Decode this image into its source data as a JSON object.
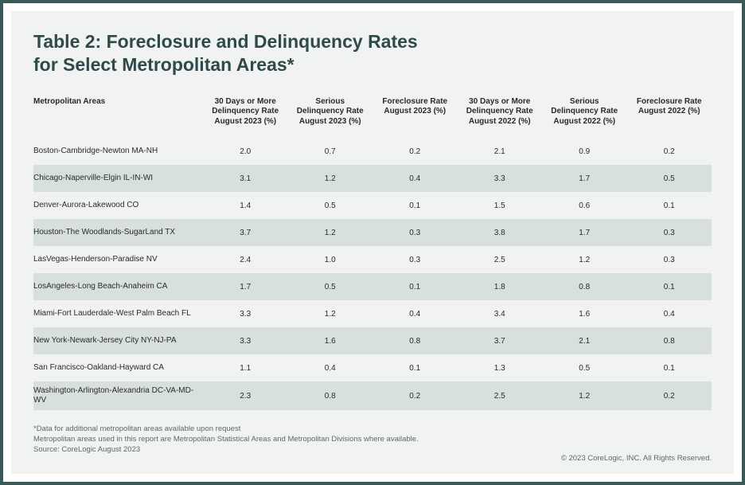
{
  "title_line1": "Table 2: Foreclosure and Delinquency Rates",
  "title_line2": "for Select Metropolitan Areas*",
  "colors": {
    "frame_border": "#3a5a5a",
    "card_bg": "#f1f3f2",
    "row_alt_bg": "#d8e0dd",
    "title_color": "#2f4a4a",
    "text_color": "#2a2a2a",
    "foot_color": "#5a6a6a"
  },
  "table": {
    "type": "table",
    "columns": [
      "Metropolitan Areas",
      "30 Days or More Delinquency Rate August 2023 (%)",
      "Serious Delinquency Rate August 2023 (%)",
      "Foreclosure Rate August 2023 (%)",
      "30 Days or More Delinquency Rate August 2022 (%)",
      "Serious Delinquency Rate August 2022 (%)",
      "Foreclosure Rate August 2022 (%)"
    ],
    "col_widths_pct": [
      25,
      12.5,
      12.5,
      12.5,
      12.5,
      12.5,
      12.5
    ],
    "header_fontsize_pt": 10,
    "cell_fontsize_pt": 10,
    "rows": [
      [
        "Boston-Cambridge-Newton MA-NH",
        "2.0",
        "0.7",
        "0.2",
        "2.1",
        "0.9",
        "0.2"
      ],
      [
        "Chicago-Naperville-Elgin IL-IN-WI",
        "3.1",
        "1.2",
        "0.4",
        "3.3",
        "1.7",
        "0.5"
      ],
      [
        "Denver-Aurora-Lakewood CO",
        "1.4",
        "0.5",
        "0.1",
        "1.5",
        "0.6",
        "0.1"
      ],
      [
        "Houston-The Woodlands-SugarLand TX",
        "3.7",
        "1.2",
        "0.3",
        "3.8",
        "1.7",
        "0.3"
      ],
      [
        "LasVegas-Henderson-Paradise NV",
        "2.4",
        "1.0",
        "0.3",
        "2.5",
        "1.2",
        "0.3"
      ],
      [
        "LosAngeles-Long Beach-Anaheim CA",
        "1.7",
        "0.5",
        "0.1",
        "1.8",
        "0.8",
        "0.1"
      ],
      [
        "Miami-Fort Lauderdale-West Palm Beach FL",
        "3.3",
        "1.2",
        "0.4",
        "3.4",
        "1.6",
        "0.4"
      ],
      [
        "New York-Newark-Jersey City NY-NJ-PA",
        "3.3",
        "1.6",
        "0.8",
        "3.7",
        "2.1",
        "0.8"
      ],
      [
        "San Francisco-Oakland-Hayward CA",
        "1.1",
        "0.4",
        "0.1",
        "1.3",
        "0.5",
        "0.1"
      ],
      [
        "Washington-Arlington-Alexandria DC-VA-MD-WV",
        "2.3",
        "0.8",
        "0.2",
        "2.5",
        "1.2",
        "0.2"
      ]
    ]
  },
  "footnotes": [
    "*Data for additional metropolitan areas available upon request",
    "Metropolitan areas used in this report are Metropolitan Statistical Areas and Metropolitan Divisions where available.",
    "Source: CoreLogic August 2023"
  ],
  "copyright": "© 2023 CoreLogic, INC. All Rights Reserved."
}
